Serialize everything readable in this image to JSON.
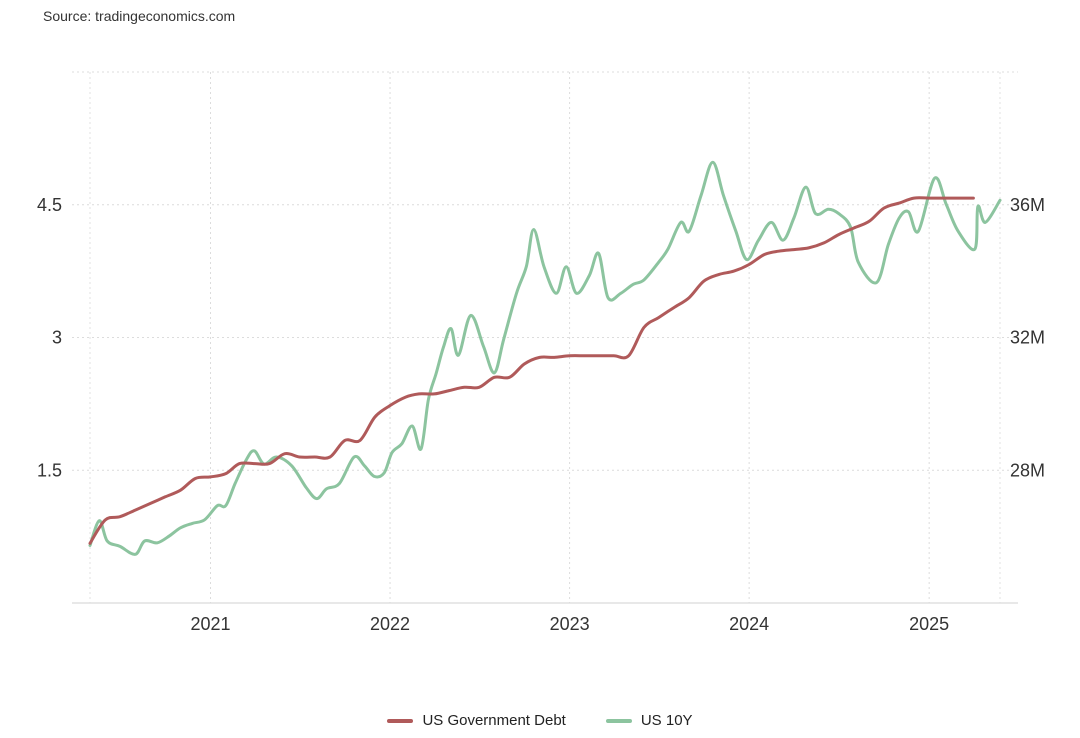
{
  "source_text": "Source: tradingeconomics.com",
  "chart_data": {
    "type": "line",
    "x_ticks": [
      "2021",
      "2022",
      "2023",
      "2024",
      "2025"
    ],
    "y_left_ticks": [
      "1.5",
      "3",
      "4.5"
    ],
    "y_right_ticks": [
      "28M",
      "32M",
      "36M"
    ],
    "y_left_range": [
      0,
      6
    ],
    "y_right_range": [
      24000000,
      40000000
    ],
    "x_range": [
      "2020-05-01",
      "2025-05-25"
    ],
    "grid": true,
    "legend_position": "bottom",
    "series": [
      {
        "name": "US Government Debt",
        "axis": "right",
        "color": "#b05a5a",
        "points": [
          [
            "2020-05-01",
            25.8
          ],
          [
            "2020-06-01",
            26.5
          ],
          [
            "2020-07-01",
            26.6
          ],
          [
            "2020-08-01",
            26.8
          ],
          [
            "2020-09-01",
            27.0
          ],
          [
            "2020-10-01",
            27.2
          ],
          [
            "2020-11-01",
            27.4
          ],
          [
            "2020-12-01",
            27.75
          ],
          [
            "2021-01-01",
            27.8
          ],
          [
            "2021-02-01",
            27.9
          ],
          [
            "2021-03-01",
            28.2
          ],
          [
            "2021-04-01",
            28.2
          ],
          [
            "2021-05-01",
            28.2
          ],
          [
            "2021-06-01",
            28.5
          ],
          [
            "2021-07-01",
            28.4
          ],
          [
            "2021-08-01",
            28.4
          ],
          [
            "2021-09-01",
            28.4
          ],
          [
            "2021-10-01",
            28.9
          ],
          [
            "2021-11-01",
            28.9
          ],
          [
            "2021-12-01",
            29.6
          ],
          [
            "2022-01-01",
            29.95
          ],
          [
            "2022-02-01",
            30.2
          ],
          [
            "2022-03-01",
            30.3
          ],
          [
            "2022-04-01",
            30.3
          ],
          [
            "2022-05-01",
            30.4
          ],
          [
            "2022-06-01",
            30.5
          ],
          [
            "2022-07-01",
            30.5
          ],
          [
            "2022-08-01",
            30.8
          ],
          [
            "2022-09-01",
            30.8
          ],
          [
            "2022-10-01",
            31.2
          ],
          [
            "2022-11-01",
            31.4
          ],
          [
            "2022-12-01",
            31.4
          ],
          [
            "2023-01-01",
            31.45
          ],
          [
            "2023-02-01",
            31.45
          ],
          [
            "2023-03-01",
            31.45
          ],
          [
            "2023-04-01",
            31.45
          ],
          [
            "2023-05-01",
            31.45
          ],
          [
            "2023-06-01",
            32.3
          ],
          [
            "2023-07-01",
            32.6
          ],
          [
            "2023-08-01",
            32.9
          ],
          [
            "2023-09-01",
            33.2
          ],
          [
            "2023-10-01",
            33.7
          ],
          [
            "2023-11-01",
            33.9
          ],
          [
            "2023-12-01",
            34.0
          ],
          [
            "2024-01-01",
            34.2
          ],
          [
            "2024-02-01",
            34.5
          ],
          [
            "2024-03-01",
            34.6
          ],
          [
            "2024-04-01",
            34.65
          ],
          [
            "2024-05-01",
            34.7
          ],
          [
            "2024-06-01",
            34.85
          ],
          [
            "2024-07-01",
            35.1
          ],
          [
            "2024-08-01",
            35.3
          ],
          [
            "2024-09-01",
            35.5
          ],
          [
            "2024-10-01",
            35.9
          ],
          [
            "2024-11-01",
            36.05
          ],
          [
            "2024-12-01",
            36.2
          ],
          [
            "2025-01-01",
            36.2
          ],
          [
            "2025-02-01",
            36.2
          ],
          [
            "2025-03-01",
            36.2
          ],
          [
            "2025-04-01",
            36.2
          ]
        ]
      },
      {
        "name": "US 10Y",
        "axis": "left",
        "color": "#8cc49f",
        "points": [
          [
            "2020-05-01",
            0.65
          ],
          [
            "2020-05-20",
            0.93
          ],
          [
            "2020-06-05",
            0.7
          ],
          [
            "2020-07-01",
            0.64
          ],
          [
            "2020-08-01",
            0.55
          ],
          [
            "2020-08-20",
            0.7
          ],
          [
            "2020-09-15",
            0.68
          ],
          [
            "2020-10-10",
            0.76
          ],
          [
            "2020-11-01",
            0.85
          ],
          [
            "2020-11-25",
            0.9
          ],
          [
            "2020-12-20",
            0.94
          ],
          [
            "2021-01-15",
            1.1
          ],
          [
            "2021-02-01",
            1.1
          ],
          [
            "2021-02-20",
            1.35
          ],
          [
            "2021-03-15",
            1.62
          ],
          [
            "2021-03-31",
            1.72
          ],
          [
            "2021-04-20",
            1.57
          ],
          [
            "2021-05-15",
            1.65
          ],
          [
            "2021-06-15",
            1.55
          ],
          [
            "2021-07-15",
            1.3
          ],
          [
            "2021-08-05",
            1.18
          ],
          [
            "2021-08-25",
            1.29
          ],
          [
            "2021-09-20",
            1.35
          ],
          [
            "2021-10-20",
            1.65
          ],
          [
            "2021-11-10",
            1.55
          ],
          [
            "2021-11-30",
            1.43
          ],
          [
            "2021-12-20",
            1.47
          ],
          [
            "2022-01-05",
            1.7
          ],
          [
            "2022-01-25",
            1.8
          ],
          [
            "2022-02-15",
            2.0
          ],
          [
            "2022-03-05",
            1.74
          ],
          [
            "2022-03-20",
            2.3
          ],
          [
            "2022-04-05",
            2.6
          ],
          [
            "2022-04-20",
            2.9
          ],
          [
            "2022-05-05",
            3.1
          ],
          [
            "2022-05-20",
            2.8
          ],
          [
            "2022-06-14",
            3.25
          ],
          [
            "2022-07-10",
            2.9
          ],
          [
            "2022-08-01",
            2.6
          ],
          [
            "2022-08-20",
            2.98
          ],
          [
            "2022-09-15",
            3.5
          ],
          [
            "2022-10-05",
            3.8
          ],
          [
            "2022-10-20",
            4.22
          ],
          [
            "2022-11-10",
            3.8
          ],
          [
            "2022-12-05",
            3.5
          ],
          [
            "2022-12-25",
            3.8
          ],
          [
            "2023-01-15",
            3.5
          ],
          [
            "2023-02-10",
            3.7
          ],
          [
            "2023-03-01",
            3.95
          ],
          [
            "2023-03-20",
            3.45
          ],
          [
            "2023-04-15",
            3.5
          ],
          [
            "2023-05-10",
            3.6
          ],
          [
            "2023-06-01",
            3.65
          ],
          [
            "2023-07-01",
            3.85
          ],
          [
            "2023-07-20",
            4.0
          ],
          [
            "2023-08-15",
            4.3
          ],
          [
            "2023-09-01",
            4.2
          ],
          [
            "2023-09-25",
            4.6
          ],
          [
            "2023-10-19",
            4.98
          ],
          [
            "2023-11-10",
            4.6
          ],
          [
            "2023-12-05",
            4.2
          ],
          [
            "2023-12-27",
            3.88
          ],
          [
            "2024-01-20",
            4.1
          ],
          [
            "2024-02-15",
            4.3
          ],
          [
            "2024-03-10",
            4.1
          ],
          [
            "2024-04-01",
            4.35
          ],
          [
            "2024-04-25",
            4.7
          ],
          [
            "2024-05-15",
            4.4
          ],
          [
            "2024-06-10",
            4.45
          ],
          [
            "2024-07-01",
            4.4
          ],
          [
            "2024-07-25",
            4.25
          ],
          [
            "2024-08-10",
            3.85
          ],
          [
            "2024-09-16",
            3.62
          ],
          [
            "2024-10-10",
            4.05
          ],
          [
            "2024-11-01",
            4.35
          ],
          [
            "2024-11-20",
            4.42
          ],
          [
            "2024-12-10",
            4.2
          ],
          [
            "2025-01-12",
            4.8
          ],
          [
            "2025-02-05",
            4.5
          ],
          [
            "2025-03-01",
            4.2
          ],
          [
            "2025-04-04",
            4.0
          ],
          [
            "2025-04-10",
            4.48
          ],
          [
            "2025-04-25",
            4.3
          ],
          [
            "2025-05-25",
            4.55
          ]
        ]
      }
    ]
  }
}
